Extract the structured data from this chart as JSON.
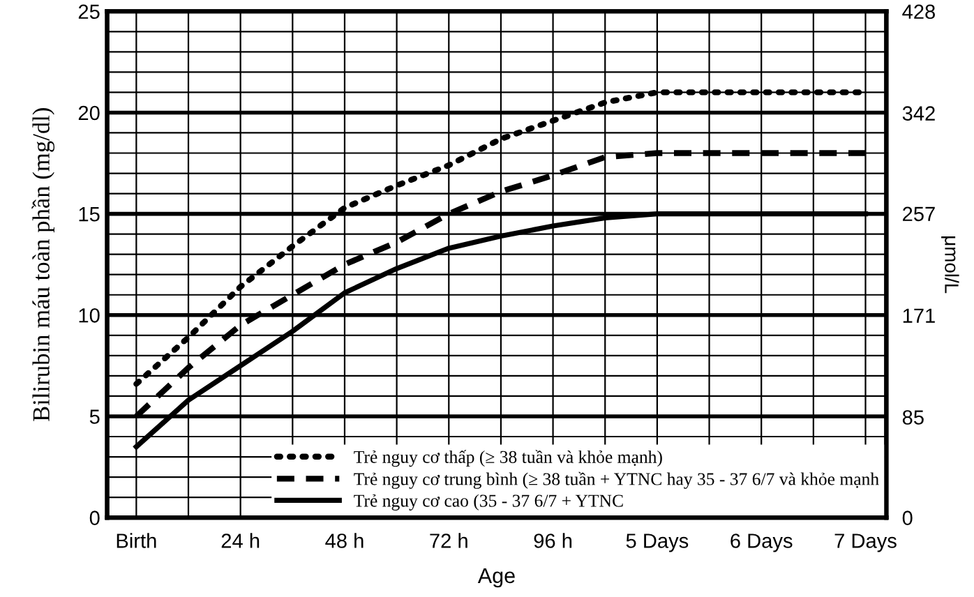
{
  "chart_data": {
    "type": "line",
    "xlabel": "Age",
    "ylabel": "Bilirubin máu toàn phần (mg/dl)",
    "y2label": "μmol/L",
    "categories": [
      "Birth",
      null,
      "24 h",
      null,
      "48 h",
      null,
      "72 h",
      null,
      "96 h",
      null,
      "5 Days",
      null,
      "6 Days",
      null,
      "7 Days"
    ],
    "series": [
      {
        "name": "Trẻ nguy cơ thấp (≥ 38 tuần và khỏe mạnh)",
        "color": "#000000",
        "line_style": "dotted",
        "values": [
          6.6,
          8.9,
          11.4,
          13.4,
          15.3,
          16.4,
          17.4,
          18.7,
          19.6,
          20.5,
          21,
          21,
          21,
          21,
          21
        ]
      },
      {
        "name": "Trẻ nguy cơ trung bình (≥ 38 tuần + YTNC hay 35 - 37 6/7 và khỏe mạnh",
        "color": "#000000",
        "line_style": "dashed",
        "values": [
          5,
          7.4,
          9.5,
          11,
          12.5,
          13.6,
          15,
          16.1,
          16.9,
          17.8,
          18,
          18,
          18,
          18,
          18
        ]
      },
      {
        "name": "Trẻ nguy cơ cao (35 - 37 6/7 + YTNC",
        "color": "#000000",
        "line_style": "solid",
        "values": [
          3.5,
          5.8,
          7.5,
          9.2,
          11.1,
          12.3,
          13.3,
          13.9,
          14.4,
          14.8,
          15,
          15,
          15,
          15,
          15
        ]
      }
    ],
    "ylim": [
      0,
      25
    ],
    "yticks": [
      0,
      {
        "value": 1,
        "label": null
      },
      {
        "value": 2,
        "label": null
      },
      {
        "value": 3,
        "label": null
      },
      {
        "value": 4,
        "label": null
      },
      5,
      {
        "value": 6,
        "label": null
      },
      {
        "value": 7,
        "label": null
      },
      {
        "value": 8,
        "label": null
      },
      {
        "value": 9,
        "label": null
      },
      10,
      {
        "value": 11,
        "label": null
      },
      {
        "value": 12,
        "label": null
      },
      {
        "value": 13,
        "label": null
      },
      {
        "value": 14,
        "label": null
      },
      15,
      {
        "value": 16,
        "label": null
      },
      {
        "value": 17,
        "label": null
      },
      {
        "value": 18,
        "label": null
      },
      {
        "value": 19,
        "label": null
      },
      20,
      {
        "value": 21,
        "label": null
      },
      {
        "value": 22,
        "label": null
      },
      {
        "value": 23,
        "label": null
      },
      {
        "value": 24,
        "label": null
      },
      25
    ],
    "y2lim": [
      0,
      428
    ],
    "y2ticks": [
      0,
      85,
      171,
      257,
      342,
      428
    ],
    "grid": true,
    "legend": "bottom right"
  }
}
